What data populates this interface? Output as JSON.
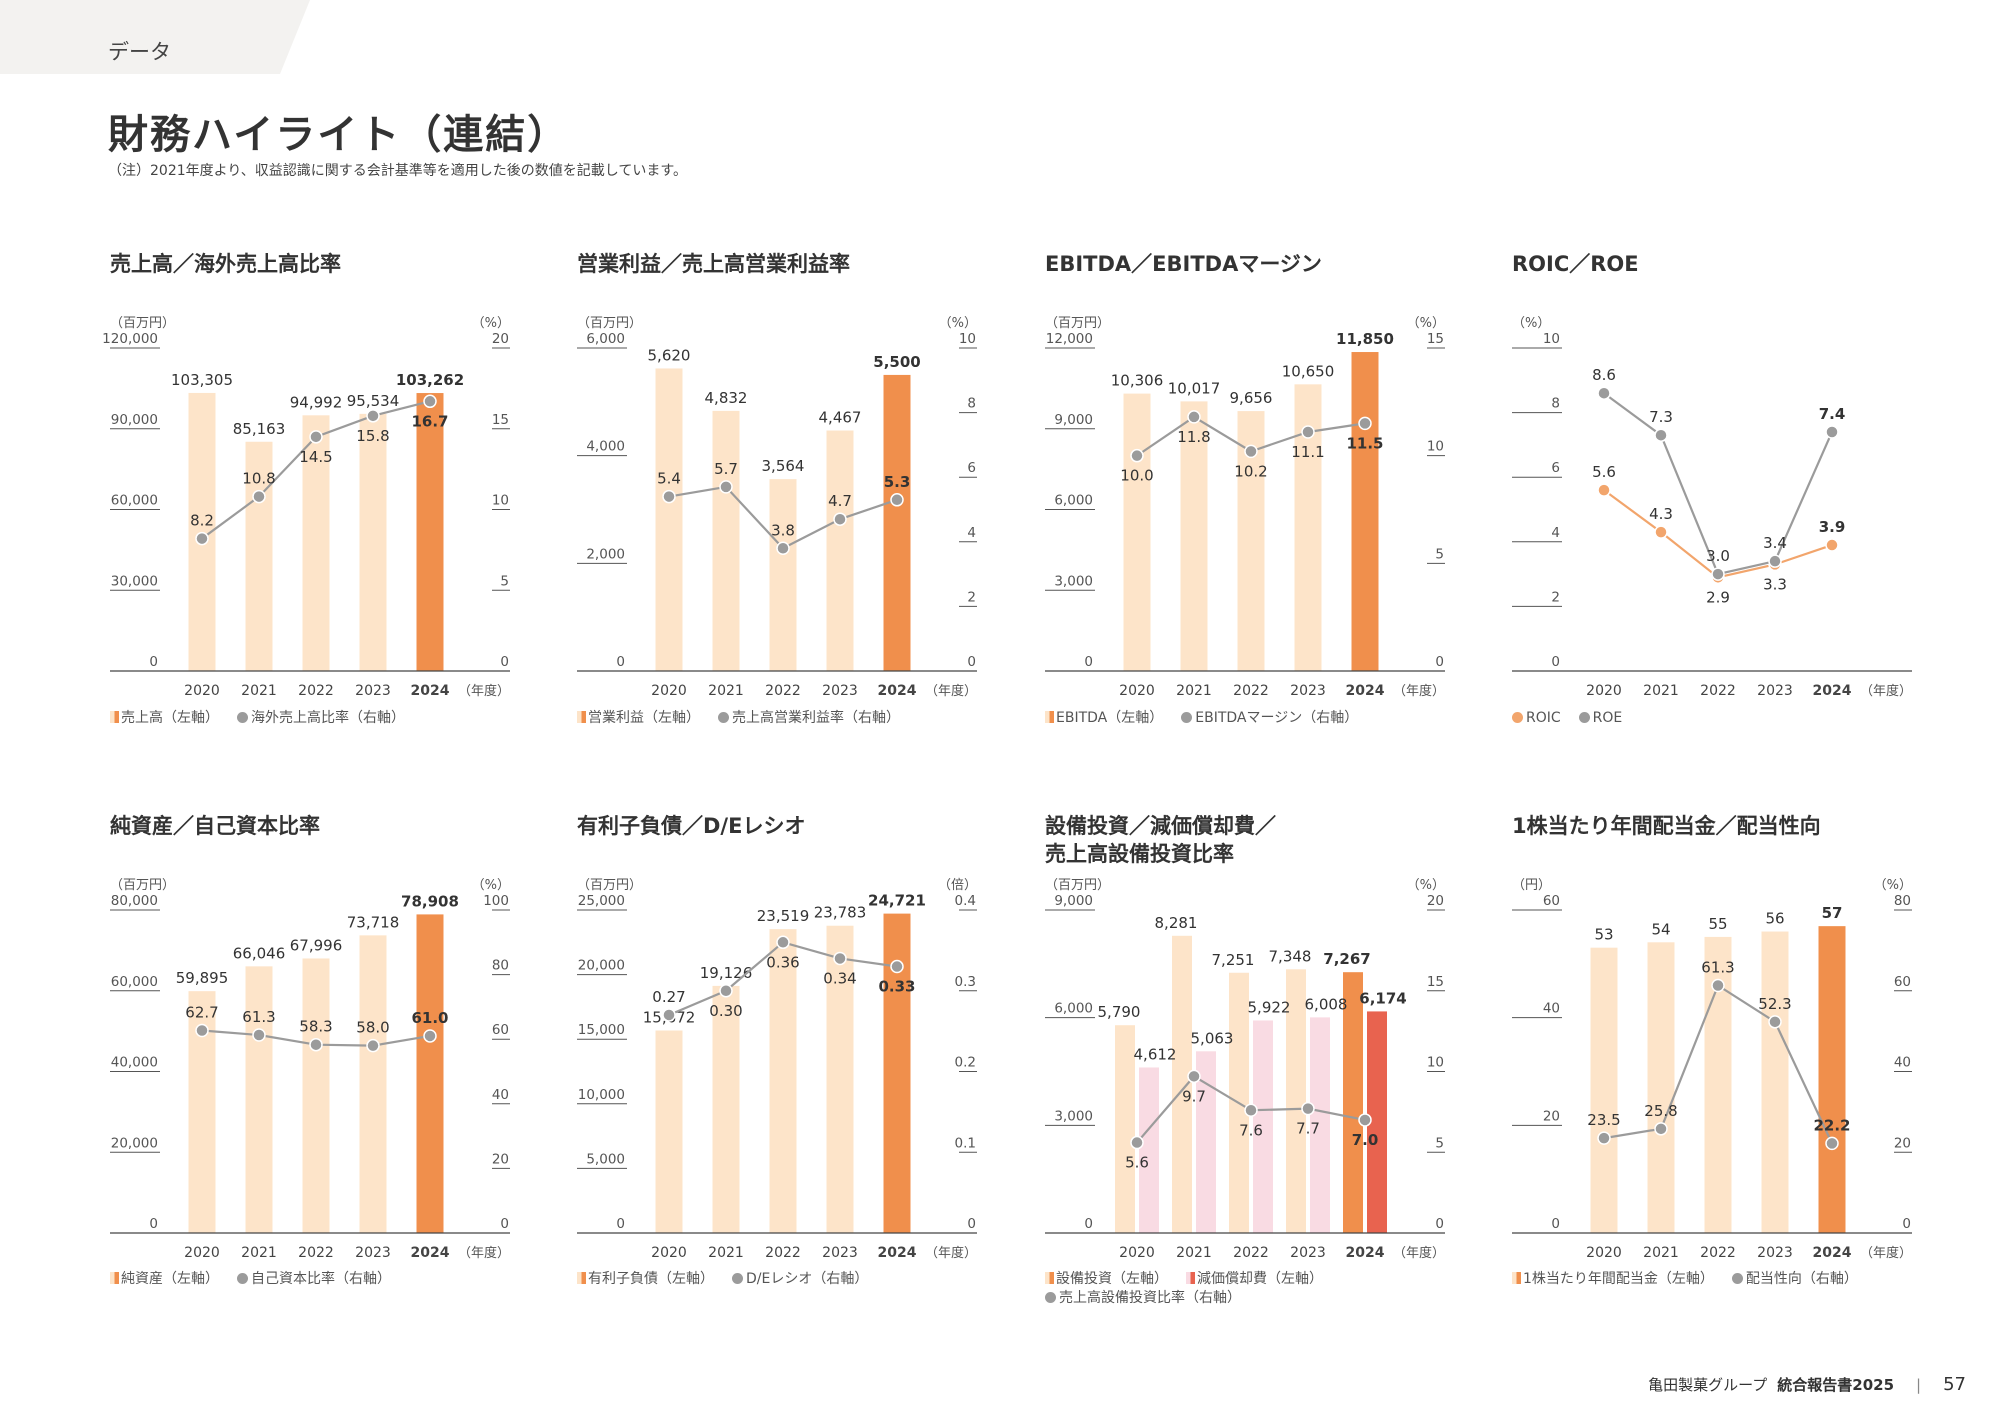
{
  "header": {
    "section": "データ",
    "title": "財務ハイライト（連結）",
    "note": "（注）2021年度より、収益認識に関する会計基準等を適用した後の数値を記載しています。"
  },
  "footer": {
    "company": "亀田製菓グループ",
    "report": "統合報告書2025",
    "page": "57"
  },
  "colors": {
    "bar_light": "#fde4c9",
    "bar_highlight": "#f08f4c",
    "bar_pink": "#f9dbe3",
    "bar_red": "#e8634f",
    "line_gray": "#9b9b9b",
    "line_orange": "#f2a56c"
  },
  "chart_data": [
    {
      "title": "売上高／海外売上高比率",
      "type": "bar+line",
      "left_unit": "（百万円）",
      "right_unit": "（%）",
      "x_unit": "（年度）",
      "categories": [
        "2020",
        "2021",
        "2022",
        "2023",
        "2024"
      ],
      "left_ticks": [
        "0",
        "30,000",
        "60,000",
        "90,000",
        "120,000"
      ],
      "ylim": [
        0,
        120000
      ],
      "right_ticks": [
        "0",
        "5",
        "10",
        "15",
        "20"
      ],
      "y2lim": [
        0,
        20
      ],
      "bars": [
        {
          "name": "売上高（左軸）",
          "values": [
            103305,
            85163,
            94992,
            95534,
            103262
          ],
          "labels": [
            "103,305",
            "85,163",
            "94,992",
            "95,534",
            "103,262"
          ],
          "color": "bar_light",
          "highlight": "bar_highlight"
        }
      ],
      "lines": [
        {
          "name": "海外売上高比率（右軸）",
          "axis": "right",
          "values": [
            8.2,
            10.8,
            14.5,
            15.8,
            16.7
          ],
          "labels": [
            "8.2",
            "10.8",
            "14.5",
            "15.8",
            "16.7"
          ],
          "label_side": [
            "above",
            "above",
            "below",
            "below",
            "below"
          ],
          "color": "line_gray"
        }
      ]
    },
    {
      "title": "営業利益／売上高営業利益率",
      "type": "bar+line",
      "left_unit": "（百万円）",
      "right_unit": "（%）",
      "x_unit": "（年度）",
      "categories": [
        "2020",
        "2021",
        "2022",
        "2023",
        "2024"
      ],
      "left_ticks": [
        "0",
        "2,000",
        "4,000",
        "6,000"
      ],
      "ylim": [
        0,
        6000
      ],
      "right_ticks": [
        "0",
        "2",
        "4",
        "6",
        "8",
        "10"
      ],
      "y2lim": [
        0,
        10
      ],
      "bars": [
        {
          "name": "営業利益（左軸）",
          "values": [
            5620,
            4832,
            3564,
            4467,
            5500
          ],
          "labels": [
            "5,620",
            "4,832",
            "3,564",
            "4,467",
            "5,500"
          ],
          "color": "bar_light",
          "highlight": "bar_highlight"
        }
      ],
      "lines": [
        {
          "name": "売上高営業利益率（右軸）",
          "axis": "right",
          "values": [
            5.4,
            5.7,
            3.8,
            4.7,
            5.3
          ],
          "labels": [
            "5.4",
            "5.7",
            "3.8",
            "4.7",
            "5.3"
          ],
          "label_side": [
            "above",
            "above",
            "above",
            "above",
            "above"
          ],
          "color": "line_gray"
        }
      ]
    },
    {
      "title": "EBITDA／EBITDAマージン",
      "type": "bar+line",
      "left_unit": "（百万円）",
      "right_unit": "（%）",
      "x_unit": "（年度）",
      "categories": [
        "2020",
        "2021",
        "2022",
        "2023",
        "2024"
      ],
      "left_ticks": [
        "0",
        "3,000",
        "6,000",
        "9,000",
        "12,000"
      ],
      "ylim": [
        0,
        12000
      ],
      "right_ticks": [
        "0",
        "5",
        "10",
        "15"
      ],
      "y2lim": [
        0,
        15
      ],
      "bars": [
        {
          "name": "EBITDA（左軸）",
          "values": [
            10306,
            10017,
            9656,
            10650,
            11850
          ],
          "labels": [
            "10,306",
            "10,017",
            "9,656",
            "10,650",
            "11,850"
          ],
          "color": "bar_light",
          "highlight": "bar_highlight"
        }
      ],
      "lines": [
        {
          "name": "EBITDAマージン（右軸）",
          "axis": "right",
          "values": [
            10.0,
            11.8,
            10.2,
            11.1,
            11.5
          ],
          "labels": [
            "10.0",
            "11.8",
            "10.2",
            "11.1",
            "11.5"
          ],
          "label_side": [
            "below",
            "below",
            "below",
            "below",
            "below"
          ],
          "color": "line_gray"
        }
      ]
    },
    {
      "title": "ROIC／ROE",
      "type": "line",
      "left_unit": "（%）",
      "right_unit": "",
      "x_unit": "（年度）",
      "categories": [
        "2020",
        "2021",
        "2022",
        "2023",
        "2024"
      ],
      "left_ticks": [
        "0",
        "2",
        "4",
        "6",
        "8",
        "10"
      ],
      "ylim": [
        0,
        10
      ],
      "right_ticks": [],
      "y2lim": [
        0,
        10
      ],
      "bars": [],
      "lines": [
        {
          "name": "ROIC",
          "axis": "left",
          "values": [
            5.6,
            4.3,
            2.9,
            3.3,
            3.9
          ],
          "labels": [
            "5.6",
            "4.3",
            "2.9",
            "3.3",
            "3.9"
          ],
          "label_side": [
            "above",
            "above",
            "below",
            "below",
            "above"
          ],
          "color": "line_orange"
        },
        {
          "name": "ROE",
          "axis": "left",
          "values": [
            8.6,
            7.3,
            3.0,
            3.4,
            7.4
          ],
          "labels": [
            "8.6",
            "7.3",
            "3.0",
            "3.4",
            "7.4"
          ],
          "label_side": [
            "above",
            "above",
            "above",
            "above",
            "above"
          ],
          "color": "line_gray"
        }
      ]
    },
    {
      "title": "純資産／自己資本比率",
      "type": "bar+line",
      "left_unit": "（百万円）",
      "right_unit": "（%）",
      "x_unit": "（年度）",
      "categories": [
        "2020",
        "2021",
        "2022",
        "2023",
        "2024"
      ],
      "left_ticks": [
        "0",
        "20,000",
        "40,000",
        "60,000",
        "80,000"
      ],
      "ylim": [
        0,
        80000
      ],
      "right_ticks": [
        "0",
        "20",
        "40",
        "60",
        "80",
        "100"
      ],
      "y2lim": [
        0,
        100
      ],
      "bars": [
        {
          "name": "純資産（左軸）",
          "values": [
            59895,
            66046,
            67996,
            73718,
            78908
          ],
          "labels": [
            "59,895",
            "66,046",
            "67,996",
            "73,718",
            "78,908"
          ],
          "color": "bar_light",
          "highlight": "bar_highlight"
        }
      ],
      "lines": [
        {
          "name": "自己資本比率（右軸）",
          "axis": "right",
          "values": [
            62.7,
            61.3,
            58.3,
            58.0,
            61.0
          ],
          "labels": [
            "62.7",
            "61.3",
            "58.3",
            "58.0",
            "61.0"
          ],
          "label_side": [
            "above",
            "above",
            "above",
            "above",
            "above"
          ],
          "color": "line_gray"
        }
      ]
    },
    {
      "title": "有利子負債／D/Eレシオ",
      "type": "bar+line",
      "left_unit": "（百万円）",
      "right_unit": "（倍）",
      "x_unit": "（年度）",
      "categories": [
        "2020",
        "2021",
        "2022",
        "2023",
        "2024"
      ],
      "left_ticks": [
        "0",
        "5,000",
        "10,000",
        "15,000",
        "20,000",
        "25,000"
      ],
      "ylim": [
        0,
        25000
      ],
      "right_ticks": [
        "0",
        "0.1",
        "0.2",
        "0.3",
        "0.4"
      ],
      "y2lim": [
        0,
        0.4
      ],
      "bars": [
        {
          "name": "有利子負債（左軸）",
          "values": [
            15672,
            19126,
            23519,
            23783,
            24721
          ],
          "labels": [
            "15,672",
            "19,126",
            "23,519",
            "23,783",
            "24,721"
          ],
          "color": "bar_light",
          "highlight": "bar_highlight"
        }
      ],
      "lines": [
        {
          "name": "D/Eレシオ（右軸）",
          "axis": "right",
          "values": [
            0.27,
            0.3,
            0.36,
            0.34,
            0.33
          ],
          "labels": [
            "0.27",
            "0.30",
            "0.36",
            "0.34",
            "0.33"
          ],
          "label_side": [
            "above",
            "below",
            "below",
            "below",
            "below"
          ],
          "color": "line_gray"
        }
      ]
    },
    {
      "title": "設備投資／減価償却費／\n売上高設備投資比率",
      "type": "bar+line",
      "left_unit": "（百万円）",
      "right_unit": "（%）",
      "x_unit": "（年度）",
      "categories": [
        "2020",
        "2021",
        "2022",
        "2023",
        "2024"
      ],
      "left_ticks": [
        "0",
        "3,000",
        "6,000",
        "9,000"
      ],
      "ylim": [
        0,
        9000
      ],
      "right_ticks": [
        "0",
        "5",
        "10",
        "15",
        "20"
      ],
      "y2lim": [
        0,
        20
      ],
      "bars": [
        {
          "name": "設備投資（左軸）",
          "values": [
            5790,
            8281,
            7251,
            7348,
            7267
          ],
          "labels": [
            "5,790",
            "8,281",
            "7,251",
            "7,348",
            "7,267"
          ],
          "color": "bar_light",
          "highlight": "bar_highlight"
        },
        {
          "name": "減価償却費（左軸）",
          "values": [
            4612,
            5063,
            5922,
            6008,
            6174
          ],
          "labels": [
            "4,612",
            "5,063",
            "5,922",
            "6,008",
            "6,174"
          ],
          "color": "bar_pink",
          "highlight": "bar_red"
        }
      ],
      "lines": [
        {
          "name": "売上高設備投資比率（右軸）",
          "axis": "right",
          "values": [
            5.6,
            9.7,
            7.6,
            7.7,
            7.0
          ],
          "labels": [
            "5.6",
            "9.7",
            "7.6",
            "7.7",
            "7.0"
          ],
          "label_side": [
            "below",
            "below",
            "below",
            "below",
            "below"
          ],
          "color": "line_gray"
        }
      ]
    },
    {
      "title": "1株当たり年間配当金／配当性向",
      "type": "bar+line",
      "left_unit": "（円）",
      "right_unit": "（%）",
      "x_unit": "（年度）",
      "categories": [
        "2020",
        "2021",
        "2022",
        "2023",
        "2024"
      ],
      "left_ticks": [
        "0",
        "20",
        "40",
        "60"
      ],
      "ylim": [
        0,
        60
      ],
      "right_ticks": [
        "0",
        "20",
        "40",
        "60",
        "80"
      ],
      "y2lim": [
        0,
        80
      ],
      "bars": [
        {
          "name": "1株当たり年間配当金（左軸）",
          "values": [
            53,
            54,
            55,
            56,
            57
          ],
          "labels": [
            "53",
            "54",
            "55",
            "56",
            "57"
          ],
          "color": "bar_light",
          "highlight": "bar_highlight"
        }
      ],
      "lines": [
        {
          "name": "配当性向（右軸）",
          "axis": "right",
          "values": [
            23.5,
            25.8,
            61.3,
            52.3,
            22.2
          ],
          "labels": [
            "23.5",
            "25.8",
            "61.3",
            "52.3",
            "22.2"
          ],
          "label_side": [
            "above",
            "above",
            "above",
            "above",
            "above"
          ],
          "color": "line_gray"
        }
      ]
    }
  ]
}
